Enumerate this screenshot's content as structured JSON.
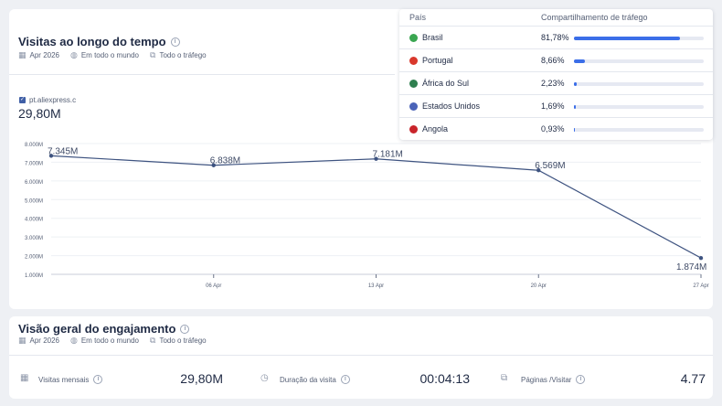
{
  "visits": {
    "title": "Visitas ao longo do tempo",
    "date": "Apr 2026",
    "region": "Em todo o mundo",
    "traffic": "Todo o tráfego",
    "site": "pt.aliexpress.c",
    "total": "29,80M"
  },
  "countries": {
    "col_country": "País",
    "col_share": "Compartilhamento de tráfego",
    "rows": [
      {
        "name": "Brasil",
        "pct_label": "81,78%",
        "pct": 81.78,
        "flag_color": "#3aa651"
      },
      {
        "name": "Portugal",
        "pct_label": "8,66%",
        "pct": 8.66,
        "flag_color": "#d9382c"
      },
      {
        "name": "África do Sul",
        "pct_label": "2,23%",
        "pct": 2.23,
        "flag_color": "#2f7f4f"
      },
      {
        "name": "Estados Unidos",
        "pct_label": "1,69%",
        "pct": 1.69,
        "flag_color": "#4a63b8"
      },
      {
        "name": "Angola",
        "pct_label": "0,93%",
        "pct": 0.93,
        "flag_color": "#c9242a"
      }
    ]
  },
  "chart_data": {
    "type": "line",
    "x": [
      "2026-03-30",
      "2026-04-06",
      "2026-04-13",
      "2026-04-20",
      "2026-04-27"
    ],
    "series": [
      {
        "values": [
          7345000,
          6838000,
          7181000,
          6569000,
          1874000
        ],
        "labels": [
          "7.345M",
          "6.838M",
          "7.181M",
          "6.569M",
          "1.874M"
        ]
      }
    ],
    "y_ticks": [
      "8.000M",
      "7.000M",
      "6.000M",
      "5.000M",
      "4.000M",
      "3.000M",
      "2.000M",
      "1.000M"
    ],
    "x_ticks": [
      "06 Apr",
      "13 Apr",
      "20 Apr",
      "27 Apr"
    ],
    "ylim": [
      1000000,
      8000000
    ],
    "color": "#3e5380"
  },
  "engagement": {
    "title": "Visão geral do engajamento",
    "date": "Apr 2026",
    "region": "Em todo o mundo",
    "traffic": "Todo o tráfego",
    "monthly_label": "Visitas mensais",
    "monthly_value": "29,80M",
    "duration_label": "Duração da visita",
    "duration_value": "00:04:13",
    "pages_label": "Páginas /Visitar",
    "pages_value": "4.77"
  }
}
